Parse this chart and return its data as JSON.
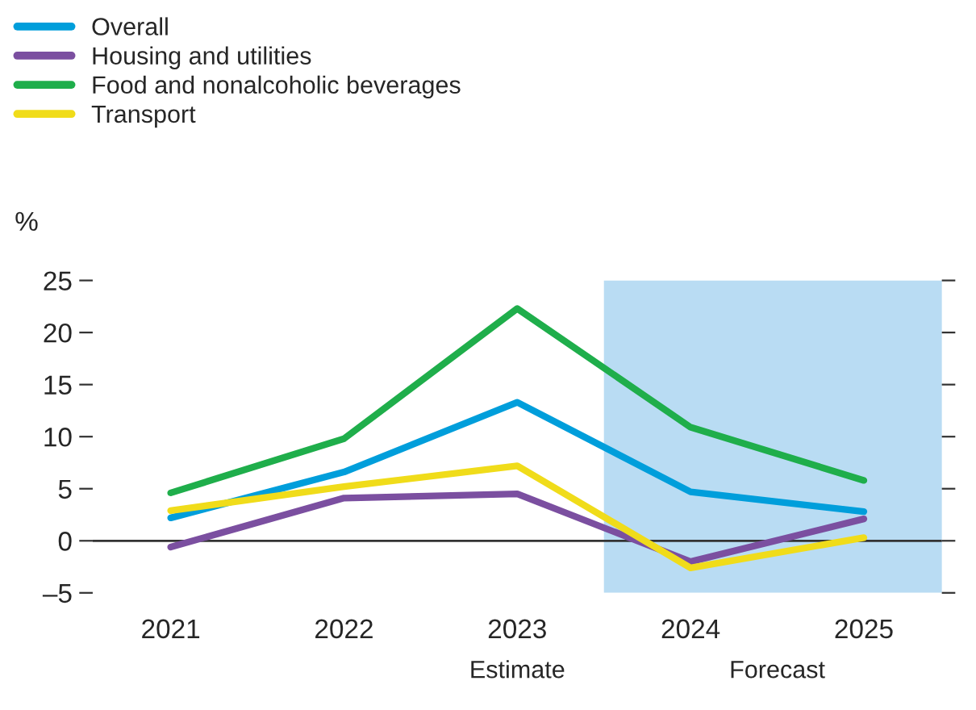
{
  "chart_data": {
    "type": "line",
    "ylabel": "%",
    "categories": [
      "2021",
      "2022",
      "2023",
      "2024",
      "2025"
    ],
    "series": [
      {
        "name": "Overall",
        "color": "#009edb",
        "values": [
          2.2,
          6.6,
          13.3,
          4.7,
          2.8
        ]
      },
      {
        "name": "Housing and utilities",
        "color": "#7b4fa0",
        "values": [
          -0.6,
          4.1,
          4.5,
          -2.0,
          2.1
        ]
      },
      {
        "name": "Food and nonalcoholic beverages",
        "color": "#1fae4b",
        "values": [
          4.6,
          9.8,
          22.3,
          10.9,
          5.8
        ]
      },
      {
        "name": "Transport",
        "color": "#f0dc1a",
        "values": [
          2.9,
          5.2,
          7.2,
          -2.6,
          0.3
        ]
      }
    ],
    "ylim": [
      -5,
      25
    ],
    "yticks": [
      {
        "value": -5,
        "label": "–5"
      },
      0,
      5,
      10,
      15,
      20,
      25
    ],
    "ref_lines": [
      {
        "axis": "y",
        "value": 0,
        "color": "#333333"
      }
    ],
    "bands": [
      {
        "axis": "x",
        "from": "2024",
        "to": "2025",
        "label": "Forecast",
        "color": "#b9dcf3"
      }
    ],
    "annotations": [
      "Estimate"
    ],
    "legend": "top left",
    "grid": false,
    "line_style": "solid",
    "marker": "none"
  }
}
